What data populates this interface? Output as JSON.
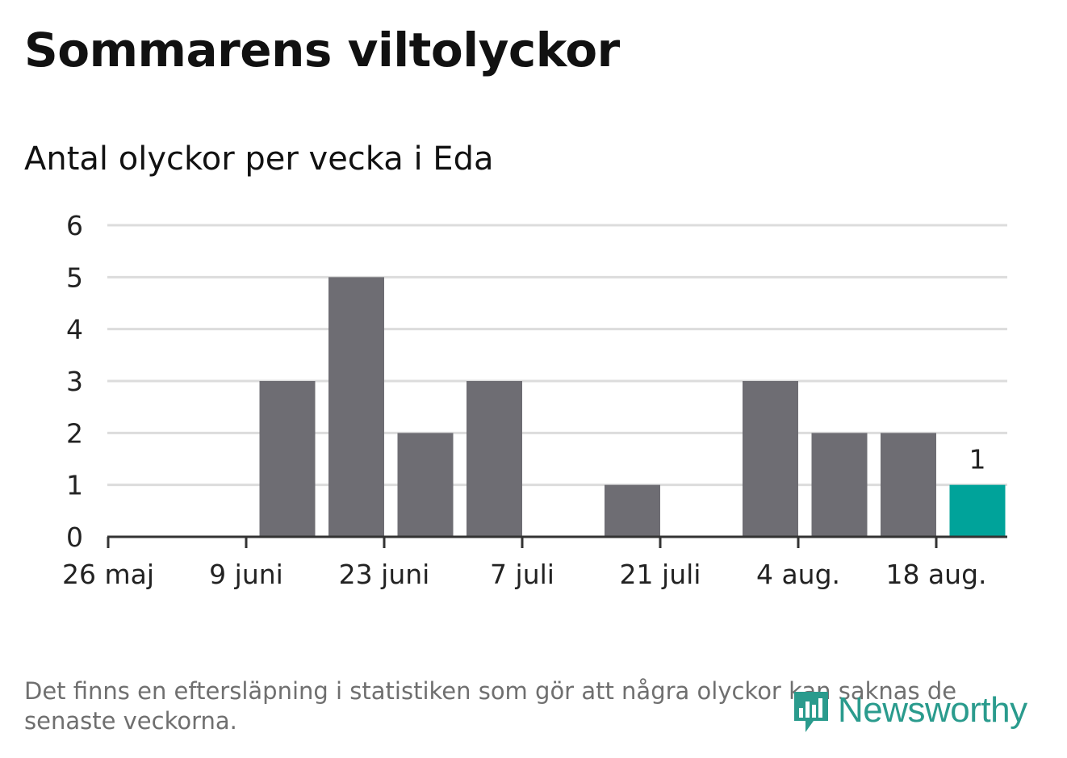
{
  "title": "Sommarens viltolyckor",
  "subtitle": "Antal olyckor per vecka i Eda",
  "note": "Det finns en eftersläpning i statistiken som gör att några olyckor kan saknas de senaste veckorna.",
  "brand": {
    "name": "Newsworthy",
    "icon": "bar-chart-speech-bubble-icon",
    "color": "#2a9b8d"
  },
  "colors": {
    "bar": "#6e6d73",
    "highlight": "#00a39a",
    "grid": "#dcdcdc",
    "axis": "#333333"
  },
  "chart_data": {
    "type": "bar",
    "title": "Sommarens viltolyckor",
    "subtitle": "Antal olyckor per vecka i Eda",
    "xlabel": "",
    "ylabel": "",
    "ylim": [
      0,
      6
    ],
    "yticks": [
      "0",
      "1",
      "2",
      "3",
      "4",
      "5",
      "6"
    ],
    "xtick_labels": [
      "26 maj",
      "9 juni",
      "23 juni",
      "7 juli",
      "21 juli",
      "4 aug.",
      "18 aug."
    ],
    "categories": [
      "26 maj",
      "2 juni",
      "9 juni",
      "16 juni",
      "23 juni",
      "30 juni",
      "7 juli",
      "14 juli",
      "21 juli",
      "28 juli",
      "4 aug.",
      "11 aug.",
      "18 aug."
    ],
    "values": [
      0,
      0,
      3,
      5,
      2,
      3,
      0,
      1,
      0,
      3,
      2,
      2,
      1
    ],
    "highlight_index": 12,
    "data_labels": [
      {
        "index": 12,
        "text": "1"
      }
    ],
    "grid": true
  }
}
